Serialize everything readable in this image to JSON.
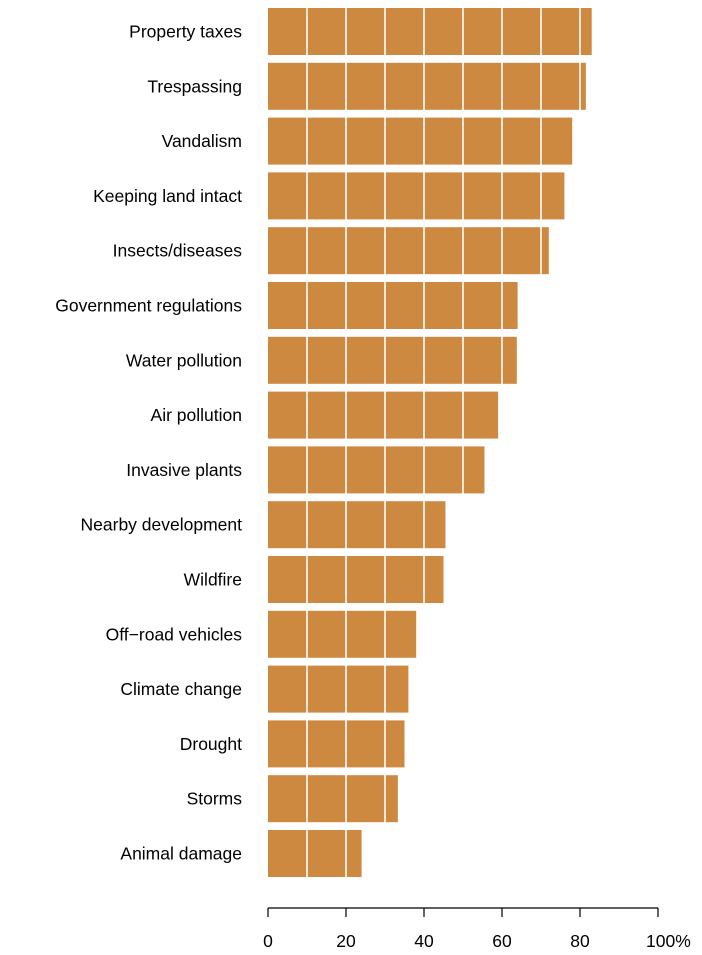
{
  "chart_data": {
    "type": "bar",
    "orientation": "horizontal",
    "title": "",
    "xlabel": "",
    "ylabel": "",
    "xlim": [
      0,
      100
    ],
    "x_ticks": [
      {
        "value": 0,
        "label": "0"
      },
      {
        "value": 20,
        "label": "20"
      },
      {
        "value": 40,
        "label": "40"
      },
      {
        "value": 60,
        "label": "60"
      },
      {
        "value": 80,
        "label": "80"
      },
      {
        "value": 100,
        "label": "100%"
      }
    ],
    "white_gridlines_every": 10,
    "grid": true,
    "bar_color": "#CD893F",
    "categories": [
      "Property taxes",
      "Trespassing",
      "Vandalism",
      "Keeping land intact",
      "Insects/diseases",
      "Government regulations",
      "Water pollution",
      "Air pollution",
      "Invasive plants",
      "Nearby development",
      "Wildfire",
      "Off−road vehicles",
      "Climate change",
      "Drought",
      "Storms",
      "Animal damage"
    ],
    "values": [
      83,
      81.5,
      78,
      76,
      72,
      64,
      63.8,
      59,
      55.5,
      45.5,
      45,
      38,
      36,
      35,
      33.3,
      24
    ]
  }
}
